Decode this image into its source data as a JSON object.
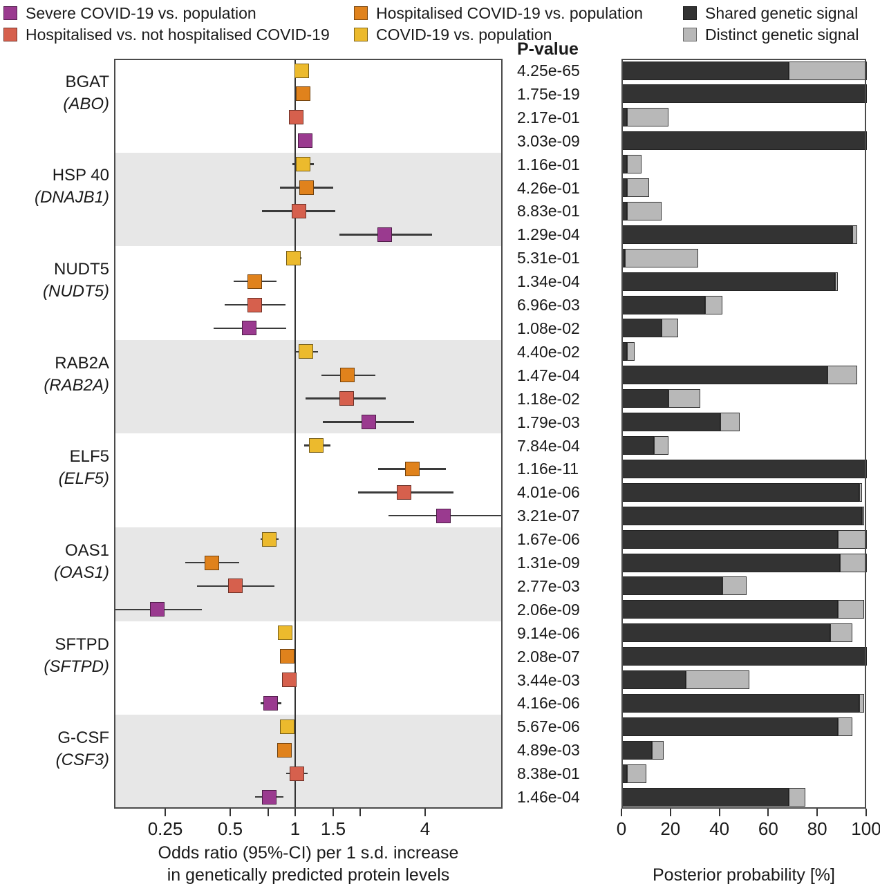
{
  "legend": {
    "comparisons": [
      {
        "key": "severe",
        "label": "Severe COVID-19 vs. population",
        "color": "#9a3a8f"
      },
      {
        "key": "hosp_vs_nothosp",
        "label": "Hospitalised vs. not hospitalised COVID-19",
        "color": "#d6604d"
      },
      {
        "key": "hosp_vs_pop",
        "label": "Hospitalised COVID-19 vs. population",
        "color": "#e0821c"
      },
      {
        "key": "covid_vs_pop",
        "label": "COVID-19 vs. population",
        "color": "#ecba2d"
      }
    ],
    "signals": [
      {
        "key": "shared",
        "label": "Shared genetic signal",
        "color": "#333333"
      },
      {
        "key": "distinct",
        "label": "Distinct genetic signal",
        "color": "#b8b8b8"
      }
    ]
  },
  "pvalue_header": "P-value",
  "forest_axis": {
    "scale": "log",
    "range": [
      0.145,
      9.2
    ],
    "reference_line": 1,
    "ticks": [
      {
        "value": 0.25,
        "label": "0.25"
      },
      {
        "value": 0.5,
        "label": "0.5"
      },
      {
        "value": 0.75,
        "label": ""
      },
      {
        "value": 1,
        "label": "1"
      },
      {
        "value": 1.5,
        "label": "1.5"
      },
      {
        "value": 2,
        "label": ""
      },
      {
        "value": 4,
        "label": "4"
      }
    ],
    "title_line1": "Odds ratio (95%-CI) per 1 s.d. increase",
    "title_line2": "in genetically predicted protein levels"
  },
  "bar_axis": {
    "range": [
      0,
      100
    ],
    "ticks": [
      {
        "value": 0,
        "label": "0"
      },
      {
        "value": 20,
        "label": "20"
      },
      {
        "value": 40,
        "label": "40"
      },
      {
        "value": 60,
        "label": "60"
      },
      {
        "value": 80,
        "label": "80"
      },
      {
        "value": 100,
        "label": "100"
      }
    ],
    "title": "Posterior probability [%]"
  },
  "chart_data": {
    "type": "forest+stacked-bar",
    "row_order": [
      "covid_vs_pop",
      "hosp_vs_pop",
      "hosp_vs_nothosp",
      "severe"
    ],
    "genes": [
      {
        "protein": "BGAT",
        "gene": "(ABO)",
        "rows": [
          {
            "comparison": "covid_vs_pop",
            "or": 1.07,
            "ci_low": 1.04,
            "ci_high": 1.1,
            "p_value": "4.25e-65",
            "shared_pct": 68,
            "distinct_pct": 32
          },
          {
            "comparison": "hosp_vs_pop",
            "or": 1.09,
            "ci_low": 1.06,
            "ci_high": 1.12,
            "p_value": "1.75e-19",
            "shared_pct": 100,
            "distinct_pct": 0
          },
          {
            "comparison": "hosp_vs_nothosp",
            "or": 1.01,
            "ci_low": 0.97,
            "ci_high": 1.05,
            "p_value": "2.17e-01",
            "shared_pct": 2,
            "distinct_pct": 17
          },
          {
            "comparison": "severe",
            "or": 1.11,
            "ci_low": 1.07,
            "ci_high": 1.16,
            "p_value": "3.03e-09",
            "shared_pct": 100,
            "distinct_pct": 0
          }
        ]
      },
      {
        "protein": "HSP 40",
        "gene": "(DNAJB1)",
        "rows": [
          {
            "comparison": "covid_vs_pop",
            "or": 1.09,
            "ci_low": 0.97,
            "ci_high": 1.22,
            "p_value": "1.16e-01",
            "shared_pct": 2,
            "distinct_pct": 6
          },
          {
            "comparison": "hosp_vs_pop",
            "or": 1.13,
            "ci_low": 0.85,
            "ci_high": 1.5,
            "p_value": "4.26e-01",
            "shared_pct": 2,
            "distinct_pct": 9
          },
          {
            "comparison": "hosp_vs_nothosp",
            "or": 1.04,
            "ci_low": 0.7,
            "ci_high": 1.53,
            "p_value": "8.83e-01",
            "shared_pct": 2,
            "distinct_pct": 14
          },
          {
            "comparison": "severe",
            "or": 2.6,
            "ci_low": 1.6,
            "ci_high": 4.3,
            "p_value": "1.29e-04",
            "shared_pct": 94,
            "distinct_pct": 2
          }
        ]
      },
      {
        "protein": "NUDT5",
        "gene": "(NUDT5)",
        "rows": [
          {
            "comparison": "covid_vs_pop",
            "or": 0.98,
            "ci_low": 0.91,
            "ci_high": 1.07,
            "p_value": "5.31e-01",
            "shared_pct": 1,
            "distinct_pct": 30
          },
          {
            "comparison": "hosp_vs_pop",
            "or": 0.65,
            "ci_low": 0.52,
            "ci_high": 0.82,
            "p_value": "1.34e-04",
            "shared_pct": 87,
            "distinct_pct": 1
          },
          {
            "comparison": "hosp_vs_nothosp",
            "or": 0.65,
            "ci_low": 0.47,
            "ci_high": 0.9,
            "p_value": "6.96e-03",
            "shared_pct": 34,
            "distinct_pct": 7
          },
          {
            "comparison": "severe",
            "or": 0.61,
            "ci_low": 0.42,
            "ci_high": 0.91,
            "p_value": "1.08e-02",
            "shared_pct": 16,
            "distinct_pct": 7
          }
        ]
      },
      {
        "protein": "RAB2A",
        "gene": "(RAB2A)",
        "rows": [
          {
            "comparison": "covid_vs_pop",
            "or": 1.12,
            "ci_low": 1.01,
            "ci_high": 1.28,
            "p_value": "4.40e-02",
            "shared_pct": 2,
            "distinct_pct": 3
          },
          {
            "comparison": "hosp_vs_pop",
            "or": 1.75,
            "ci_low": 1.32,
            "ci_high": 2.35,
            "p_value": "1.47e-04",
            "shared_pct": 84,
            "distinct_pct": 12
          },
          {
            "comparison": "hosp_vs_nothosp",
            "or": 1.73,
            "ci_low": 1.12,
            "ci_high": 2.63,
            "p_value": "1.18e-02",
            "shared_pct": 19,
            "distinct_pct": 13
          },
          {
            "comparison": "severe",
            "or": 2.2,
            "ci_low": 1.34,
            "ci_high": 3.55,
            "p_value": "1.79e-03",
            "shared_pct": 40,
            "distinct_pct": 8
          }
        ]
      },
      {
        "protein": "ELF5",
        "gene": "(ELF5)",
        "rows": [
          {
            "comparison": "covid_vs_pop",
            "or": 1.25,
            "ci_low": 1.1,
            "ci_high": 1.46,
            "p_value": "7.84e-04",
            "shared_pct": 13,
            "distinct_pct": 6
          },
          {
            "comparison": "hosp_vs_pop",
            "or": 3.5,
            "ci_low": 2.42,
            "ci_high": 5.0,
            "p_value": "1.16e-11",
            "shared_pct": 100,
            "distinct_pct": 0
          },
          {
            "comparison": "hosp_vs_nothosp",
            "or": 3.2,
            "ci_low": 1.96,
            "ci_high": 5.4,
            "p_value": "4.01e-06",
            "shared_pct": 97,
            "distinct_pct": 1
          },
          {
            "comparison": "severe",
            "or": 4.85,
            "ci_low": 2.7,
            "ci_high": 9.0,
            "p_value": "3.21e-07",
            "shared_pct": 98,
            "distinct_pct": 1
          }
        ]
      },
      {
        "protein": "OAS1",
        "gene": "(OAS1)",
        "rows": [
          {
            "comparison": "covid_vs_pop",
            "or": 0.76,
            "ci_low": 0.69,
            "ci_high": 0.84,
            "p_value": "1.67e-06",
            "shared_pct": 88,
            "distinct_pct": 12
          },
          {
            "comparison": "hosp_vs_pop",
            "or": 0.41,
            "ci_low": 0.31,
            "ci_high": 0.55,
            "p_value": "1.31e-09",
            "shared_pct": 89,
            "distinct_pct": 11
          },
          {
            "comparison": "hosp_vs_nothosp",
            "or": 0.53,
            "ci_low": 0.35,
            "ci_high": 0.8,
            "p_value": "2.77e-03",
            "shared_pct": 41,
            "distinct_pct": 10
          },
          {
            "comparison": "severe",
            "or": 0.23,
            "ci_low": 0.14,
            "ci_high": 0.37,
            "p_value": "2.06e-09",
            "shared_pct": 88,
            "distinct_pct": 11
          }
        ]
      },
      {
        "protein": "SFTPD",
        "gene": "(SFTPD)",
        "rows": [
          {
            "comparison": "covid_vs_pop",
            "or": 0.9,
            "ci_low": 0.87,
            "ci_high": 0.93,
            "p_value": "9.14e-06",
            "shared_pct": 85,
            "distinct_pct": 9
          },
          {
            "comparison": "hosp_vs_pop",
            "or": 0.92,
            "ci_low": 0.89,
            "ci_high": 0.95,
            "p_value": "2.08e-07",
            "shared_pct": 100,
            "distinct_pct": 0
          },
          {
            "comparison": "hosp_vs_nothosp",
            "or": 0.94,
            "ci_low": 0.9,
            "ci_high": 0.98,
            "p_value": "3.44e-03",
            "shared_pct": 26,
            "distinct_pct": 26
          },
          {
            "comparison": "severe",
            "or": 0.77,
            "ci_low": 0.69,
            "ci_high": 0.86,
            "p_value": "4.16e-06",
            "shared_pct": 97,
            "distinct_pct": 2
          }
        ]
      },
      {
        "protein": "G-CSF",
        "gene": "(CSF3)",
        "rows": [
          {
            "comparison": "covid_vs_pop",
            "or": 0.92,
            "ci_low": 0.89,
            "ci_high": 0.95,
            "p_value": "5.67e-06",
            "shared_pct": 88,
            "distinct_pct": 6
          },
          {
            "comparison": "hosp_vs_pop",
            "or": 0.89,
            "ci_low": 0.84,
            "ci_high": 0.96,
            "p_value": "4.89e-03",
            "shared_pct": 12,
            "distinct_pct": 5
          },
          {
            "comparison": "hosp_vs_nothosp",
            "or": 1.02,
            "ci_low": 0.91,
            "ci_high": 1.14,
            "p_value": "8.38e-01",
            "shared_pct": 2,
            "distinct_pct": 8
          },
          {
            "comparison": "severe",
            "or": 0.76,
            "ci_low": 0.65,
            "ci_high": 0.88,
            "p_value": "1.46e-04",
            "shared_pct": 68,
            "distinct_pct": 7
          }
        ]
      }
    ]
  }
}
